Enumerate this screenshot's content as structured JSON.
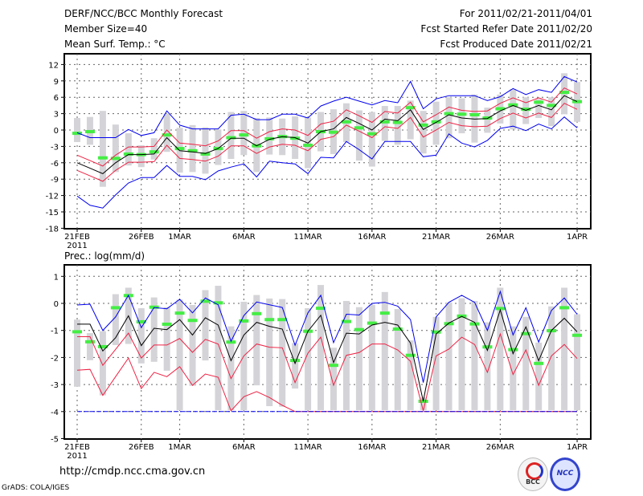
{
  "header": {
    "title": "DERF/NCC/BCC Monthly Forecast",
    "member_size": "Member Size=40",
    "variable_top": "Mean Surf. Temp.: °C",
    "period": "For 2011/02/21-2011/04/01",
    "started": "Fcst Started Refer Date 2011/02/20",
    "produced": "Fcst Produced Date 2011/02/21"
  },
  "footer": {
    "url": "http://cmdp.ncc.cma.gov.cn",
    "credit": "GrADS: COLA/IGES",
    "logo_left": "BCC",
    "logo_right": "NCC"
  },
  "colors": {
    "max_min": "#0000ee",
    "spread": "#ee2244",
    "mean": "#000000",
    "obs": "#44ee44",
    "range": "#d4d4d8"
  },
  "chart_data": [
    {
      "type": "line",
      "title": "Mean Surf. Temp.: °C",
      "x_tick_labels": [
        "21FEB",
        "26FEB",
        "1MAR",
        "6MAR",
        "11MAR",
        "16MAR",
        "21MAR",
        "26MAR",
        "1APR"
      ],
      "x_tick_index": [
        0,
        5,
        8,
        13,
        18,
        23,
        28,
        33,
        39
      ],
      "year_label": "2011",
      "ylim": [
        -18,
        12
      ],
      "yticks": [
        12,
        9,
        6,
        3,
        0,
        -3,
        -6,
        -9,
        -12,
        -15,
        -18
      ],
      "grid": true,
      "days": 40,
      "series": [
        {
          "name": "max",
          "color": "blue",
          "values": [
            -0.5,
            -1.4,
            -1.4,
            -1.4,
            0.1,
            -1,
            -0.5,
            3.5,
            0.9,
            0.2,
            0.2,
            0.2,
            2.7,
            2.9,
            1.9,
            1.9,
            2.9,
            2.9,
            2.2,
            4.4,
            5.3,
            6,
            5.3,
            4.6,
            5.4,
            5,
            8.9,
            3.9,
            5.7,
            6.3,
            6.3,
            6.3,
            5.4,
            6.1,
            7.6,
            6.5,
            7.4,
            6.9,
            9.8,
            8.8
          ]
        },
        {
          "name": "upper",
          "color": "red",
          "values": [
            -4.6,
            -5.6,
            -6.6,
            -4.6,
            -3.1,
            -3.1,
            -3,
            0,
            -2.4,
            -2.6,
            -2.9,
            -2,
            -0.1,
            -0.1,
            -1.5,
            -0.3,
            0.2,
            0,
            -1,
            1.1,
            1.6,
            3.7,
            2.6,
            1.4,
            3.4,
            3.1,
            5.1,
            1.5,
            2.8,
            4.2,
            3.6,
            3.4,
            3.5,
            4.9,
            5.9,
            5,
            5.9,
            5.1,
            7.7,
            6.6
          ]
        },
        {
          "name": "mean",
          "color": "black",
          "values": [
            -6,
            -7,
            -8,
            -6,
            -4.5,
            -4.5,
            -4.4,
            -1.4,
            -3.8,
            -4,
            -4.3,
            -3.4,
            -1.5,
            -1.5,
            -2.9,
            -1.7,
            -1.2,
            -1.4,
            -2.4,
            -0.3,
            0.2,
            2.3,
            1.2,
            0,
            2,
            1.7,
            3.7,
            0.1,
            1.4,
            2.8,
            2.2,
            2,
            2.1,
            3.5,
            4.5,
            3.6,
            4.5,
            3.7,
            6.3,
            5.2
          ]
        },
        {
          "name": "lower",
          "color": "red",
          "values": [
            -7.4,
            -8.4,
            -9.4,
            -7.4,
            -5.9,
            -5.9,
            -5.8,
            -2.8,
            -5.2,
            -5.4,
            -5.7,
            -4.8,
            -2.9,
            -2.9,
            -4.3,
            -3.1,
            -2.6,
            -2.8,
            -3.8,
            -1.7,
            -1.2,
            0.9,
            -0.2,
            -1.4,
            0.6,
            0.3,
            2.3,
            -1.3,
            0,
            1.4,
            0.8,
            0.6,
            0.7,
            2.1,
            3.1,
            2.2,
            3.1,
            2.3,
            4.9,
            3.8
          ]
        },
        {
          "name": "min",
          "color": "blue",
          "values": [
            -12.1,
            -13.8,
            -14.3,
            -11.9,
            -9.7,
            -8.7,
            -8.7,
            -6.5,
            -8.5,
            -8.5,
            -9.1,
            -7.5,
            -6.8,
            -6.2,
            -8.6,
            -5.7,
            -6,
            -6.2,
            -8,
            -5,
            -5.1,
            -2.1,
            -3.6,
            -5.3,
            -2.1,
            -2.1,
            -2.1,
            -4.9,
            -4.6,
            -0.7,
            -2.4,
            -3.1,
            -1.9,
            0.3,
            0.7,
            -0.1,
            1.1,
            0.2,
            2.4,
            0.4
          ]
        }
      ],
      "obs": [
        -0.6,
        -0.3,
        -5.1,
        -5.2,
        -4.4,
        -4.5,
        -4,
        -0.9,
        -3.4,
        -3.8,
        -4.4,
        -3.4,
        -1.4,
        -0.9,
        -2.9,
        -1.6,
        -1.2,
        -1.5,
        -2.8,
        -0.3,
        -0.4,
        1.5,
        0.4,
        -0.7,
        1.5,
        1.4,
        4.1,
        0.9,
        1.5,
        3,
        2.9,
        2.8,
        2.2,
        3.9,
        4.6,
        3.8,
        5.1,
        4.5,
        6.9,
        5.2
      ],
      "range_high": [
        2.2,
        2.4,
        3.5,
        1,
        -0.6,
        -2.8,
        -1.5,
        3,
        0.4,
        0.9,
        0.5,
        0.1,
        3.3,
        3.5,
        2.2,
        2.3,
        2.1,
        2.5,
        2.3,
        3.3,
        3.8,
        4.9,
        3.6,
        3.3,
        4.4,
        4.4,
        5.4,
        3.5,
        5.2,
        6,
        5.8,
        6.5,
        4.1,
        6.5,
        7.5,
        6,
        5.7,
        6,
        10.4,
        8.8
      ],
      "range_low": [
        -2.2,
        -2.7,
        -10.4,
        -7.7,
        -6.5,
        -6.8,
        -5.4,
        -4,
        -7.8,
        -7.7,
        -8,
        -6.4,
        -5.3,
        -4.6,
        -7.7,
        -4.5,
        -4.6,
        -5.3,
        -7,
        -3.9,
        -4.4,
        -2.2,
        -5.6,
        -6.7,
        -2,
        -2.7,
        -1.7,
        -4.3,
        -2.7,
        -1.5,
        -0.6,
        -2.3,
        -0.5,
        1.2,
        0.1,
        1.1,
        2.2,
        0.7,
        2.9,
        1.5
      ]
    },
    {
      "type": "line",
      "title": "Prec.: log(mm/d)",
      "x_tick_labels": [
        "21FEB",
        "26FEB",
        "1MAR",
        "6MAR",
        "11MAR",
        "16MAR",
        "21MAR",
        "26MAR",
        "1APR"
      ],
      "x_tick_index": [
        0,
        5,
        8,
        13,
        18,
        23,
        28,
        33,
        39
      ],
      "year_label": "2011",
      "ylim": [
        -5,
        1
      ],
      "yticks": [
        1,
        0,
        -1,
        -2,
        -3,
        -4,
        -5
      ],
      "grid": true,
      "days": 40,
      "series": [
        {
          "name": "max",
          "color": "blue",
          "values": [
            -0.06,
            -0.03,
            -1,
            -0.5,
            0.3,
            -0.9,
            -0.15,
            -0.2,
            0.15,
            -0.35,
            0.2,
            -0.05,
            -1.4,
            -0.45,
            0.05,
            -0.05,
            -0.15,
            -1.55,
            -0.35,
            0.3,
            -1.45,
            -0.4,
            -0.43,
            0,
            0.04,
            -0.1,
            -0.6,
            -2.93,
            -0.5,
            0.04,
            0.3,
            0.04,
            -1,
            0.44,
            -1.17,
            -0.16,
            -1.43,
            -0.26,
            0.2,
            -0.4
          ]
        },
        {
          "name": "upper",
          "color": "red",
          "values": [
            -1.23,
            -1.23,
            -2.29,
            -1.7,
            -1.1,
            -2.02,
            -1.54,
            -1.54,
            -1.3,
            -1.81,
            -1.33,
            -1.5,
            -2.78,
            -1.94,
            -1.5,
            -1.62,
            -1.64,
            -2.93,
            -1.84,
            -1.25,
            -3.03,
            -1.92,
            -1.82,
            -1.5,
            -1.5,
            -1.72,
            -2.14,
            -3.97,
            -1.94,
            -1.69,
            -1.25,
            -1.52,
            -2.55,
            -1.13,
            -2.63,
            -1.72,
            -3.03,
            -1.94,
            -1.52,
            -2.04
          ]
        },
        {
          "name": "mean",
          "color": "black",
          "values": [
            -0.77,
            -0.77,
            -1.76,
            -1.27,
            -0.46,
            -1.56,
            -0.92,
            -0.97,
            -0.6,
            -1.17,
            -0.53,
            -0.8,
            -2.12,
            -1.17,
            -0.7,
            -0.85,
            -0.95,
            -2.22,
            -1.03,
            -0.44,
            -2.19,
            -1.1,
            -1.13,
            -0.8,
            -0.7,
            -0.8,
            -1.47,
            -3.62,
            -1.13,
            -0.73,
            -0.48,
            -0.7,
            -1.74,
            -0.24,
            -1.86,
            -0.87,
            -2.12,
            -1,
            -0.55,
            -1.05
          ]
        },
        {
          "name": "lower",
          "color": "red",
          "values": [
            -2.47,
            -2.44,
            -3.4,
            -2.71,
            -2.02,
            -3.15,
            -2.55,
            -2.71,
            -2.34,
            -3.03,
            -2.61,
            -2.73,
            -3.97,
            -3.45,
            -3.26,
            -3.48,
            -3.77,
            -4,
            -4,
            -4,
            -4,
            -4,
            -4,
            -4,
            -4,
            -4,
            -4,
            -4,
            -4,
            -4,
            -4,
            -4,
            -4,
            -4,
            -4,
            -4,
            -4,
            -4,
            -4,
            -4
          ]
        },
        {
          "name": "min",
          "color": "blue",
          "values": [
            -4,
            -4,
            -4,
            -4,
            -4,
            -4,
            -4,
            -4,
            -4,
            -4,
            -4,
            -4,
            -4,
            -4,
            -4,
            -4,
            -4,
            -4,
            -4,
            -4,
            -4,
            -4,
            -4,
            -4,
            -4,
            -4,
            -4,
            -4,
            -4,
            -4,
            -4,
            -4,
            -4,
            -4,
            -4,
            -4,
            -4,
            -4,
            -4,
            -4
          ]
        }
      ],
      "obs": [
        -1.05,
        -1.42,
        -1.6,
        -0.16,
        0.29,
        -0.68,
        -0.14,
        -0.77,
        -0.36,
        -0.63,
        0.08,
        0.02,
        -1.43,
        -0.65,
        -0.38,
        -0.6,
        -0.6,
        -2.11,
        -1.03,
        -0.18,
        -2.29,
        -0.67,
        -0.97,
        -0.73,
        -0.36,
        -0.95,
        -1.92,
        -3.62,
        -1.06,
        -0.75,
        -0.47,
        -0.76,
        -1.61,
        -0.19,
        -1.71,
        -1.12,
        -2.22,
        -1.01,
        -0.16,
        -1.18
      ],
      "range_high": [
        -0.6,
        -1.1,
        -1.03,
        0.34,
        0.58,
        -0.18,
        0.22,
        -0.14,
        0.14,
        -0.06,
        0.49,
        0.65,
        -0.85,
        0.06,
        0.31,
        0.18,
        0.16,
        -1.47,
        -0.18,
        0.68,
        -1.64,
        0.09,
        -0.14,
        -0.06,
        0.42,
        -0.21,
        -1.37,
        -3.48,
        -0.5,
        0.04,
        0.19,
        0.09,
        -0.7,
        0.58,
        -0.85,
        -0.5,
        -1.45,
        -0.11,
        0.58,
        -0.4
      ],
      "range_low": [
        -3.08,
        -2.1,
        -3.4,
        -1.54,
        -1.5,
        -2.22,
        -2.16,
        -2.49,
        -3.95,
        -3.05,
        -2.11,
        -3.95,
        -3.95,
        -3.95,
        -3.03,
        -3.8,
        -3.82,
        -3.15,
        -3.95,
        -3.95,
        -3.95,
        -3.95,
        -3.95,
        -3.95,
        -3.95,
        -3.95,
        -3.95,
        -3.95,
        -3.95,
        -3.95,
        -3.95,
        -3.95,
        -3.95,
        -3.95,
        -3.95,
        -3.95,
        -3.95,
        -3.95,
        -3.95,
        -3.95
      ]
    }
  ]
}
